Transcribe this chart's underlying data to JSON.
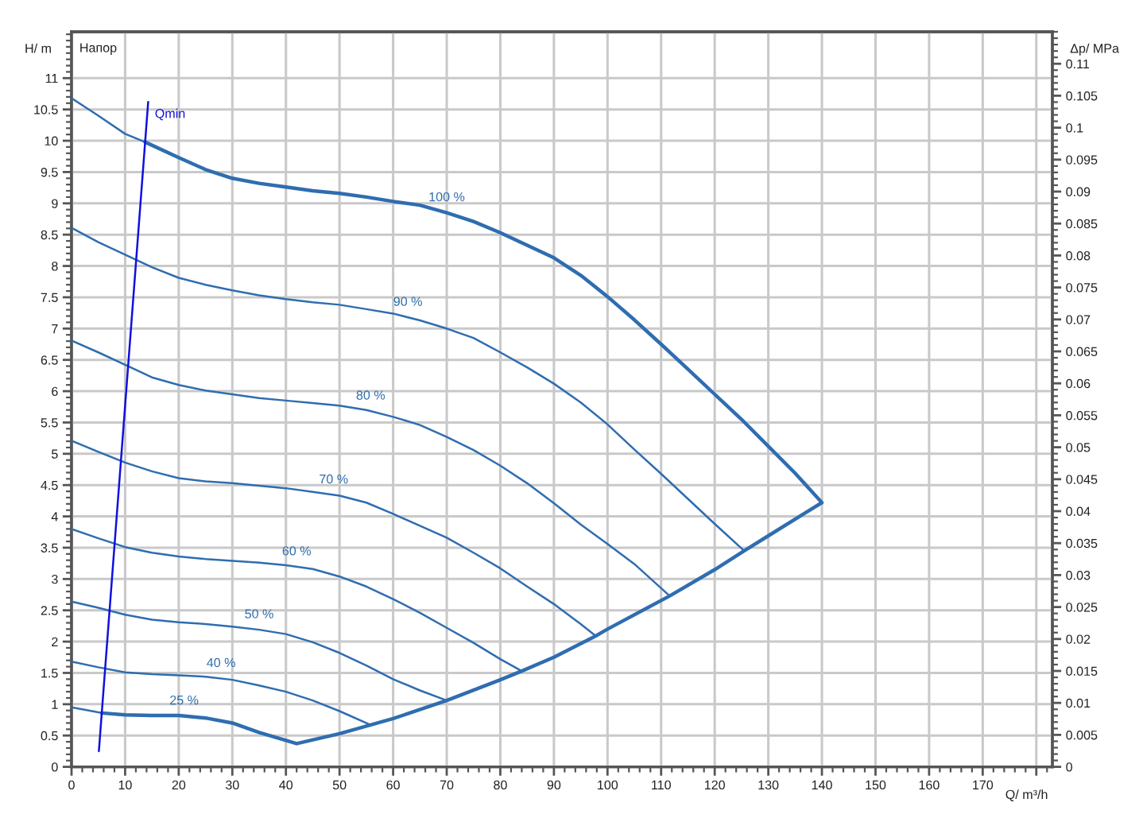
{
  "chart_data": {
    "type": "line",
    "title": "Напор",
    "xlabel": "Q/ m³/h",
    "ylabel": "H/ m",
    "y2label": "Δp/ MPa",
    "xlim": [
      0,
      183
    ],
    "xticks": [
      0,
      10,
      20,
      30,
      40,
      50,
      60,
      70,
      80,
      90,
      100,
      110,
      120,
      130,
      140,
      150,
      160,
      170,
      {
        "value": 180,
        "label": null
      }
    ],
    "ylim": [
      0,
      11.74
    ],
    "yticks": [
      0,
      0.5,
      1,
      1.5,
      2,
      2.5,
      3,
      3.5,
      4,
      4.5,
      5,
      5.5,
      6,
      6.5,
      7,
      7.5,
      8,
      8.5,
      9,
      9.5,
      10,
      10.5,
      11
    ],
    "y2lim": [
      0,
      0.115
    ],
    "y2ticks": [
      0,
      0.005,
      0.01,
      0.015,
      0.02,
      0.025,
      0.03,
      0.035,
      0.04,
      0.045,
      0.05,
      0.055,
      0.06,
      0.065,
      0.07,
      0.075,
      0.08,
      0.085,
      0.09,
      0.095,
      0.1,
      0.105,
      0.11
    ],
    "grid": true,
    "series": [
      {
        "name": "100 %",
        "color": "#2f6db0",
        "x": [
          0,
          5,
          10,
          13.7,
          20,
          25,
          30,
          35,
          40,
          45,
          50,
          55,
          60,
          65,
          70,
          75,
          80,
          85,
          90,
          95,
          100,
          105,
          110,
          115,
          120,
          125,
          130,
          135,
          140
        ],
        "values": [
          10.68,
          10.4,
          10.11,
          9.98,
          9.73,
          9.54,
          9.4,
          9.32,
          9.26,
          9.2,
          9.16,
          9.1,
          9.03,
          8.97,
          8.85,
          8.71,
          8.53,
          8.33,
          8.13,
          7.85,
          7.51,
          7.14,
          6.75,
          6.35,
          5.95,
          5.55,
          5.12,
          4.69,
          4.22
        ]
      },
      {
        "name": "90 %",
        "color": "#2f6db0",
        "x": [
          0,
          5,
          10,
          15,
          20,
          25,
          30,
          35,
          40,
          45,
          50,
          55,
          60,
          65,
          70,
          75,
          80,
          85,
          90,
          95,
          100,
          105,
          110,
          115,
          120,
          125.5
        ],
        "values": [
          8.61,
          8.38,
          8.18,
          7.98,
          7.81,
          7.7,
          7.61,
          7.53,
          7.47,
          7.42,
          7.38,
          7.31,
          7.24,
          7.13,
          7.0,
          6.85,
          6.62,
          6.38,
          6.12,
          5.82,
          5.47,
          5.07,
          4.68,
          4.28,
          3.88,
          3.45
        ]
      },
      {
        "name": "80 %",
        "color": "#2f6db0",
        "x": [
          0,
          5,
          10,
          15,
          20,
          25,
          30,
          35,
          40,
          45,
          50,
          55,
          60,
          65,
          70,
          75,
          80,
          85,
          90,
          95,
          100,
          105,
          111.6
        ],
        "values": [
          6.81,
          6.62,
          6.42,
          6.22,
          6.1,
          6.01,
          5.95,
          5.89,
          5.85,
          5.81,
          5.77,
          5.7,
          5.59,
          5.46,
          5.27,
          5.06,
          4.81,
          4.53,
          4.21,
          3.87,
          3.56,
          3.24,
          2.73
        ]
      },
      {
        "name": "70 %",
        "color": "#2f6db0",
        "x": [
          0,
          5,
          10,
          15,
          20,
          25,
          30,
          35,
          40,
          45,
          50,
          55,
          60,
          65,
          70,
          75,
          80,
          85,
          90,
          95,
          97.8
        ],
        "values": [
          5.21,
          5.03,
          4.86,
          4.72,
          4.61,
          4.56,
          4.53,
          4.49,
          4.45,
          4.39,
          4.33,
          4.22,
          4.04,
          3.85,
          3.66,
          3.42,
          3.17,
          2.88,
          2.6,
          2.28,
          2.09
        ]
      },
      {
        "name": "60 %",
        "color": "#2f6db0",
        "x": [
          0,
          5,
          10,
          15,
          20,
          25,
          30,
          35,
          40,
          45,
          50,
          55,
          60,
          65,
          70,
          75,
          80,
          84
        ],
        "values": [
          3.8,
          3.65,
          3.51,
          3.42,
          3.36,
          3.32,
          3.29,
          3.26,
          3.22,
          3.16,
          3.04,
          2.88,
          2.68,
          2.46,
          2.22,
          1.98,
          1.72,
          1.53
        ]
      },
      {
        "name": "50 %",
        "color": "#2f6db0",
        "x": [
          0,
          5,
          10,
          15,
          20,
          25,
          30,
          35,
          40,
          45,
          50,
          55,
          60,
          65,
          70
        ],
        "values": [
          2.64,
          2.54,
          2.43,
          2.35,
          2.31,
          2.28,
          2.24,
          2.19,
          2.12,
          1.99,
          1.82,
          1.62,
          1.4,
          1.22,
          1.06
        ]
      },
      {
        "name": "40 %",
        "color": "#2f6db0",
        "x": [
          0,
          5,
          10,
          15,
          20,
          25,
          30,
          35,
          40,
          45,
          50,
          55.8
        ],
        "values": [
          1.68,
          1.59,
          1.51,
          1.48,
          1.46,
          1.44,
          1.39,
          1.3,
          1.2,
          1.06,
          0.89,
          0.67
        ]
      },
      {
        "name": "25 %",
        "color": "#2f6db0",
        "x": [
          0,
          5,
          10,
          15,
          20,
          25,
          30,
          35,
          42
        ],
        "values": [
          0.95,
          0.87,
          0.83,
          0.82,
          0.82,
          0.78,
          0.7,
          0.55,
          0.37
        ]
      },
      {
        "color": "#2f6db0",
        "x": [
          13.7,
          20,
          25,
          30,
          35,
          40,
          45,
          50,
          55,
          60,
          65,
          70,
          75,
          80,
          85,
          90,
          95,
          100,
          105,
          110,
          115,
          120,
          125,
          130,
          135,
          140,
          130,
          125.5,
          120,
          111.6,
          100,
          97.8,
          90,
          84,
          80,
          70,
          60,
          55.8,
          50,
          42,
          35,
          30,
          25,
          20,
          15,
          10,
          5.6
        ],
        "values": [
          9.98,
          9.73,
          9.54,
          9.4,
          9.32,
          9.26,
          9.2,
          9.16,
          9.1,
          9.03,
          8.97,
          8.85,
          8.71,
          8.53,
          8.33,
          8.13,
          7.85,
          7.51,
          7.14,
          6.75,
          6.35,
          5.95,
          5.55,
          5.12,
          4.69,
          4.22,
          3.69,
          3.45,
          3.15,
          2.73,
          2.2,
          2.09,
          1.75,
          1.53,
          1.39,
          1.06,
          0.77,
          0.67,
          0.53,
          0.37,
          0.55,
          0.7,
          0.78,
          0.82,
          0.82,
          0.83,
          0.86
        ]
      },
      {
        "name": "Qmin",
        "color": "#1010e0",
        "x": [
          5.1,
          14.3
        ],
        "values": [
          0.25,
          10.62
        ]
      }
    ]
  }
}
